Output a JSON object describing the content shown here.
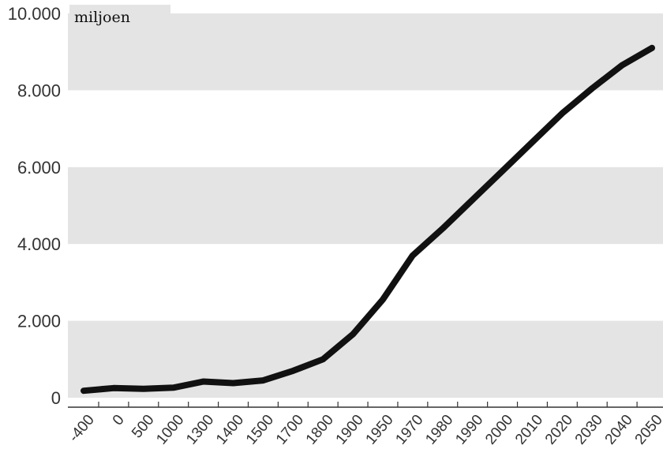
{
  "chart_data": {
    "type": "line",
    "title": "",
    "xlabel": "",
    "ylabel": "miljoen",
    "ylim": [
      0,
      10000
    ],
    "yticks": [
      0,
      2000,
      4000,
      6000,
      8000,
      10000
    ],
    "ytick_labels": [
      "0",
      "2.000",
      "4.000",
      "6.000",
      "8.000",
      "10.000"
    ],
    "categories": [
      "-400",
      "0",
      "500",
      "1000",
      "1300",
      "1400",
      "1500",
      "1700",
      "1800",
      "1900",
      "1950",
      "1970",
      "1980",
      "1990",
      "2000",
      "2010",
      "2020",
      "2030",
      "2040",
      "2050"
    ],
    "series": [
      {
        "values": [
          180,
          250,
          230,
          260,
          420,
          380,
          450,
          700,
          1000,
          1650,
          2550,
          3700,
          4400,
          5150,
          5900,
          6650,
          7400,
          8050,
          8650,
          9100
        ]
      }
    ],
    "grid": "alternating horizontal bands",
    "colors": {
      "line": "#111111",
      "band": "#e4e4e4",
      "label_box": "#e4e4e4"
    }
  }
}
